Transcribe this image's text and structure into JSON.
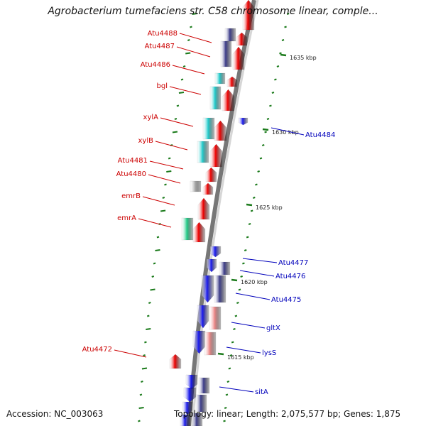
{
  "title": "Agrobacterium tumefaciens str. C58 chromosome linear, comple...",
  "accession": "Accession: NC_003063",
  "summary": "Topology: linear; Length: 2,075,577 bp; Genes: 1,875",
  "colors": {
    "backbone_dark": "#777777",
    "backbone_light": "#d6d6d6",
    "label_red": "#cc0000",
    "label_blue": "#0000bb",
    "tick": "#1a7a1a",
    "red": "#ee0000",
    "blue": "#1a1aee",
    "navy": "#3d3d8a",
    "cyan": "#22cccc",
    "pink": "#ee8888",
    "gray": "#aaaaaa",
    "green": "#22cc88"
  },
  "scale_labels": [
    {
      "text": "1635 kbp",
      "kbp": 1635
    },
    {
      "text": "1630 kbp",
      "kbp": 1630
    },
    {
      "text": "1625 kbp",
      "kbp": 1625
    },
    {
      "text": "1620 kbp",
      "kbp": 1620
    },
    {
      "text": "1615 kbp",
      "kbp": 1615
    }
  ],
  "gene_labels": [
    {
      "name": "Atu4488",
      "strand": "forward"
    },
    {
      "name": "Atu4487",
      "strand": "forward"
    },
    {
      "name": "Atu4486",
      "strand": "forward"
    },
    {
      "name": "bgl",
      "strand": "forward"
    },
    {
      "name": "xylA",
      "strand": "forward"
    },
    {
      "name": "xylB",
      "strand": "forward"
    },
    {
      "name": "Atu4481",
      "strand": "forward"
    },
    {
      "name": "Atu4480",
      "strand": "forward"
    },
    {
      "name": "emrB",
      "strand": "forward"
    },
    {
      "name": "emrA",
      "strand": "forward"
    },
    {
      "name": "Atu4472",
      "strand": "forward"
    },
    {
      "name": "Atu4484",
      "strand": "reverse"
    },
    {
      "name": "Atu4477",
      "strand": "reverse"
    },
    {
      "name": "Atu4476",
      "strand": "reverse"
    },
    {
      "name": "Atu4475",
      "strand": "reverse"
    },
    {
      "name": "gltX",
      "strand": "reverse"
    },
    {
      "name": "lysS",
      "strand": "reverse"
    },
    {
      "name": "sitA",
      "strand": "reverse"
    }
  ]
}
